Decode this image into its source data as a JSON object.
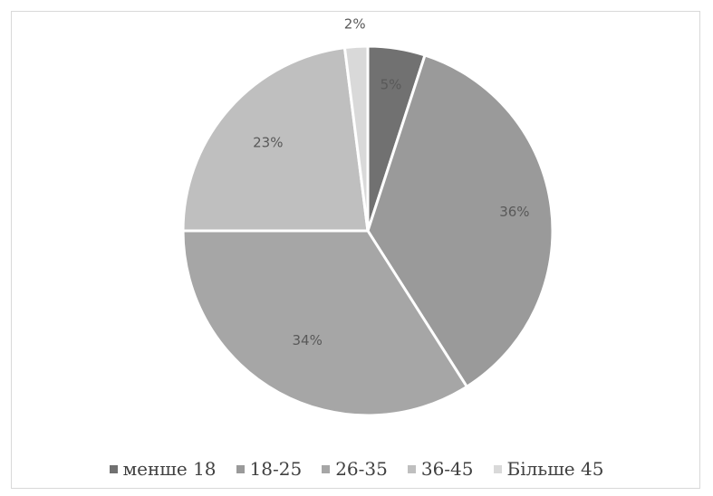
{
  "chart_data": {
    "type": "pie",
    "title": "",
    "legend_position": "bottom",
    "slices": [
      {
        "label": "менше 18",
        "value": 5,
        "value_label": "5%",
        "color": "#717171"
      },
      {
        "label": "18-25",
        "value": 36,
        "value_label": "36%",
        "color": "#9a9a9a"
      },
      {
        "label": "26-35",
        "value": 34,
        "value_label": "34%",
        "color": "#a6a6a6"
      },
      {
        "label": "36-45",
        "value": 23,
        "value_label": "23%",
        "color": "#bfbfbf"
      },
      {
        "label": "Більше 45",
        "value": 2,
        "value_label": "2%",
        "color": "#d9d9d9"
      }
    ]
  }
}
